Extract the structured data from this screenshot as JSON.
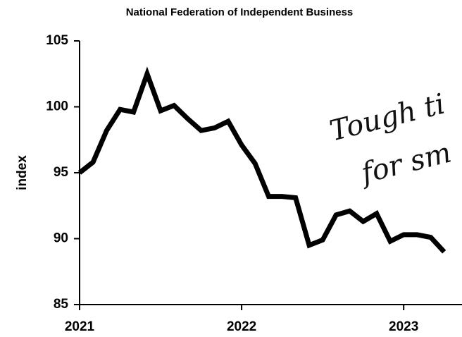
{
  "chart_data": {
    "type": "line",
    "title": "National Federation of Independent Business",
    "ylabel": "index",
    "annotations": [
      "Tough ti",
      "for sm"
    ],
    "x": [
      2021,
      2021.083,
      2021.167,
      2021.25,
      2021.333,
      2021.417,
      2021.5,
      2021.583,
      2021.667,
      2021.75,
      2021.833,
      2021.917,
      2022,
      2022.083,
      2022.167,
      2022.25,
      2022.333,
      2022.417,
      2022.5,
      2022.583,
      2022.667,
      2022.75,
      2022.833,
      2022.917,
      2023,
      2023.083,
      2023.167,
      2023.25
    ],
    "series": [
      {
        "name": "index",
        "color": "#000000",
        "values": [
          95.0,
          95.8,
          98.2,
          99.8,
          99.6,
          102.5,
          99.7,
          100.1,
          99.1,
          98.2,
          98.4,
          98.9,
          97.1,
          95.7,
          93.2,
          93.2,
          93.1,
          89.5,
          89.9,
          91.8,
          92.1,
          91.3,
          91.9,
          89.8,
          90.3,
          90.3,
          90.1,
          89.0
        ]
      }
    ],
    "xlim": [
      2021,
      2023.36
    ],
    "xticks": [
      2021,
      2022,
      2023
    ],
    "ylim": [
      85,
      105
    ],
    "yticks": [
      85,
      90,
      95,
      100,
      105
    ],
    "grid": false
  }
}
